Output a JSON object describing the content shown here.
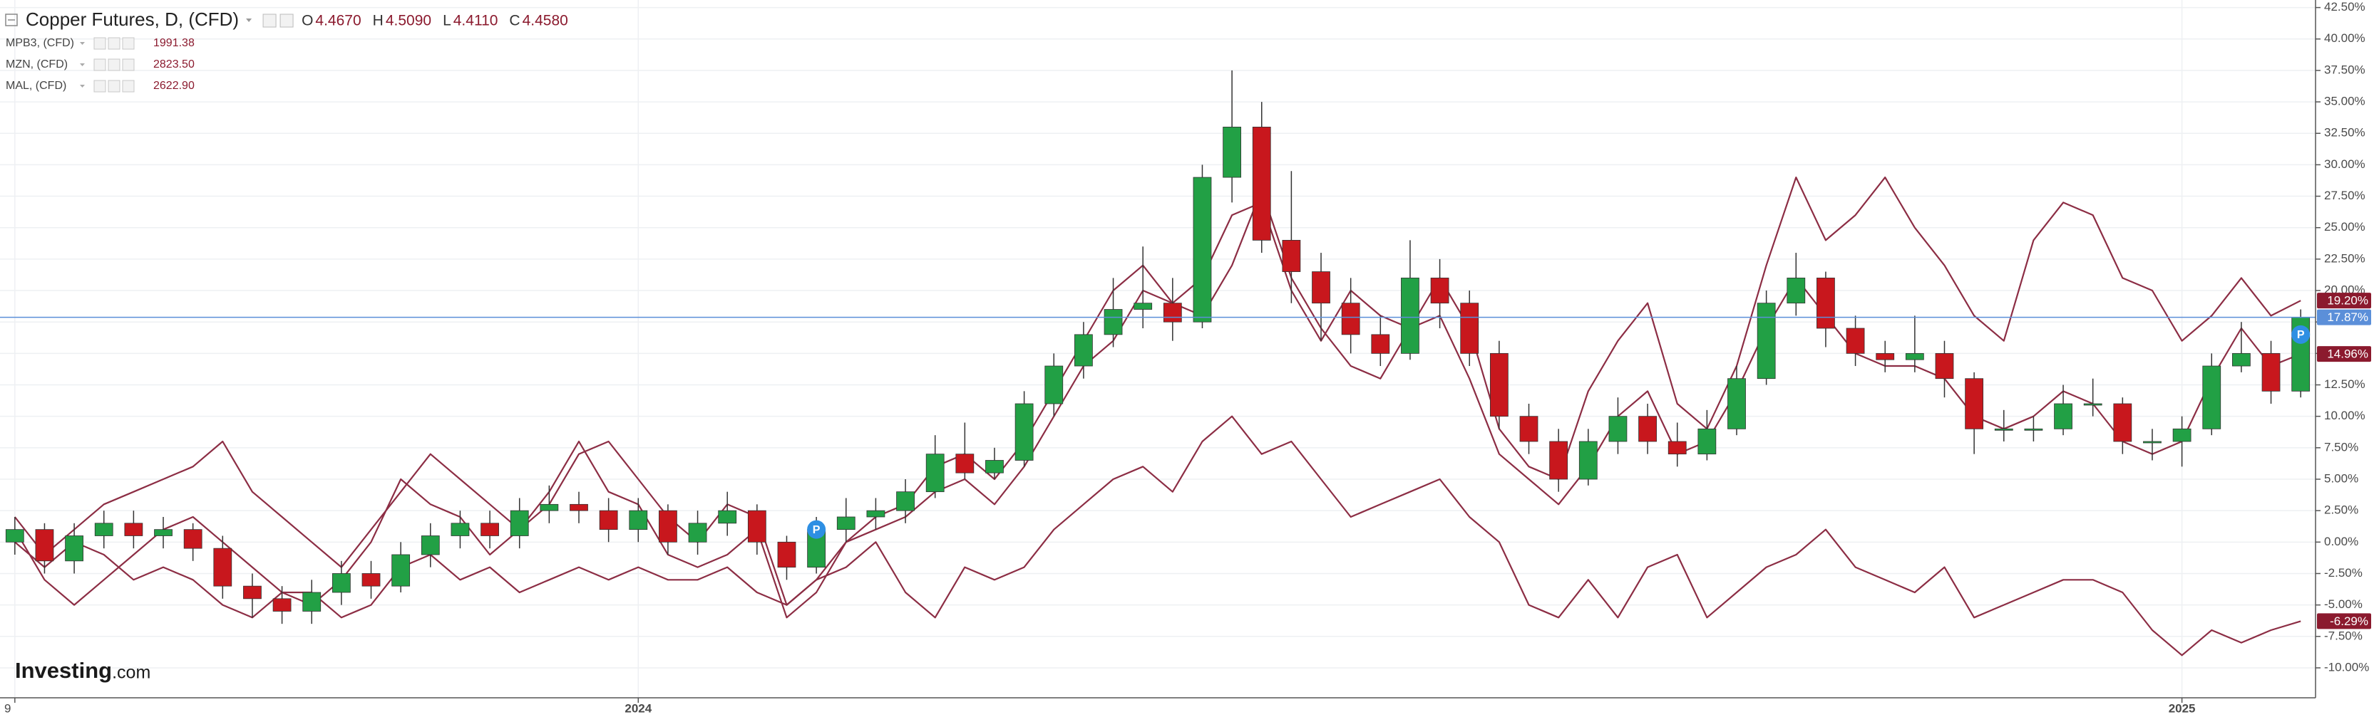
{
  "chart_data": {
    "type": "candlestick",
    "title": "Copper Futures, D, (CFD)",
    "ohlc_header": [
      {
        "key": "O",
        "value": "4.4670"
      },
      {
        "key": "H",
        "value": "4.5090"
      },
      {
        "key": "L",
        "value": "4.4110"
      },
      {
        "key": "C",
        "value": "4.4580"
      }
    ],
    "watermark": {
      "brand": "Investing",
      "suffix": ".com"
    },
    "categories": [
      "9",
      null,
      null,
      null,
      null,
      null,
      null,
      null,
      null,
      null,
      null,
      null,
      null,
      null,
      null,
      null,
      null,
      null,
      null,
      null,
      null,
      "2024",
      null,
      null,
      null,
      null,
      null,
      null,
      null,
      null,
      null,
      null,
      null,
      null,
      null,
      null,
      null,
      null,
      null,
      null,
      null,
      null,
      null,
      null,
      null,
      null,
      null,
      null,
      null,
      null,
      null,
      null,
      null,
      null,
      null,
      null,
      null,
      null,
      null,
      null,
      null,
      null,
      null,
      null,
      null,
      null,
      null,
      null,
      null,
      null,
      null,
      null,
      null,
      "2025",
      null,
      null,
      null,
      null
    ],
    "open": [
      0,
      1.0,
      -1.5,
      0.5,
      1.5,
      0.5,
      1.0,
      -0.5,
      -3.5,
      -4.5,
      -5.5,
      -4.0,
      -2.5,
      -3.5,
      -1.0,
      0.5,
      1.5,
      0.5,
      2.5,
      3.0,
      2.5,
      1.0,
      2.5,
      0.0,
      1.5,
      2.5,
      0.0,
      -2.0,
      1.0,
      2.0,
      2.5,
      4.0,
      7.0,
      5.5,
      6.5,
      11.0,
      14.0,
      16.5,
      18.5,
      19.0,
      17.5,
      29.0,
      33.0,
      24.0,
      21.5,
      19.0,
      16.5,
      15.0,
      21.0,
      19.0,
      15.0,
      10.0,
      8.0,
      5.0,
      8.0,
      10.0,
      8.0,
      7.0,
      9.0,
      13.0,
      19.0,
      21.0,
      17.0,
      15.0,
      14.5,
      15.0,
      13.0,
      9.0,
      9.0,
      9.0,
      11.0,
      11.0,
      8.0,
      8.0,
      9.0,
      14.0,
      15.0,
      12.0
    ],
    "high": [
      2.0,
      1.5,
      1.5,
      2.5,
      2.5,
      2.0,
      1.5,
      0.5,
      -2.5,
      -3.5,
      -3.0,
      -1.5,
      -1.5,
      0.0,
      1.5,
      2.5,
      2.5,
      3.5,
      4.5,
      4.0,
      3.5,
      3.5,
      3.0,
      2.5,
      4.0,
      3.0,
      0.5,
      2.0,
      3.5,
      3.5,
      5.0,
      8.5,
      9.5,
      7.5,
      12.0,
      15.0,
      17.5,
      21.0,
      23.5,
      21.0,
      30.0,
      37.5,
      35.0,
      29.5,
      23.0,
      21.0,
      18.0,
      24.0,
      22.5,
      20.0,
      16.0,
      11.0,
      9.0,
      9.0,
      11.5,
      11.0,
      9.5,
      10.5,
      14.0,
      20.0,
      23.0,
      21.5,
      18.0,
      16.0,
      18.0,
      16.0,
      13.5,
      10.5,
      10.0,
      12.5,
      13.0,
      11.5,
      9.0,
      10.0,
      15.0,
      17.5,
      16.0,
      18.5
    ],
    "low": [
      -1.0,
      -2.5,
      -2.5,
      -0.5,
      -0.5,
      -0.5,
      -1.5,
      -4.5,
      -6.0,
      -6.5,
      -6.5,
      -5.0,
      -4.5,
      -4.0,
      -2.0,
      -0.5,
      -0.5,
      -0.5,
      1.5,
      1.5,
      0.0,
      0.0,
      -1.0,
      -1.0,
      0.5,
      -1.0,
      -3.0,
      -2.5,
      0.0,
      1.0,
      1.5,
      3.5,
      5.0,
      5.0,
      6.0,
      10.0,
      13.0,
      15.5,
      17.0,
      16.0,
      17.0,
      27.0,
      23.0,
      19.0,
      16.0,
      15.0,
      14.0,
      14.5,
      17.0,
      14.0,
      9.0,
      7.0,
      4.0,
      4.5,
      7.0,
      7.0,
      6.0,
      6.5,
      8.5,
      12.5,
      18.0,
      15.5,
      14.0,
      13.5,
      13.5,
      11.5,
      7.0,
      8.0,
      8.0,
      8.5,
      10.0,
      7.0,
      6.5,
      6.0,
      8.5,
      13.5,
      11.0,
      11.5
    ],
    "close": [
      1.0,
      -1.5,
      0.5,
      1.5,
      0.5,
      1.0,
      -0.5,
      -3.5,
      -4.5,
      -5.5,
      -4.0,
      -2.5,
      -3.5,
      -1.0,
      0.5,
      1.5,
      0.5,
      2.5,
      3.0,
      2.5,
      1.0,
      2.5,
      0.0,
      1.5,
      2.5,
      0.0,
      -2.0,
      1.0,
      2.0,
      2.5,
      4.0,
      7.0,
      5.5,
      6.5,
      11.0,
      14.0,
      16.5,
      18.5,
      19.0,
      17.5,
      29.0,
      33.0,
      24.0,
      21.5,
      19.0,
      16.5,
      15.0,
      21.0,
      19.0,
      15.0,
      10.0,
      8.0,
      5.0,
      8.0,
      10.0,
      8.0,
      7.0,
      9.0,
      13.0,
      19.0,
      21.0,
      17.0,
      15.0,
      14.5,
      15.0,
      13.0,
      9.0,
      9.0,
      9.0,
      11.0,
      11.0,
      8.0,
      8.0,
      9.0,
      14.0,
      15.0,
      12.0,
      17.87
    ],
    "last_label": "17.87%",
    "up_color": "#22a045",
    "down_color": "#c8171d",
    "price_line_color": "#5b8fd9",
    "series": [
      {
        "name": "MPB3, (CFD)",
        "price": "1991.38",
        "color": "#8c2d44",
        "last_label": "14.96%",
        "values": [
          1,
          -3,
          -5,
          -3,
          -1,
          1,
          2,
          0,
          -2,
          -4,
          -5,
          -3,
          0,
          5,
          3,
          2,
          -1,
          1,
          4,
          8,
          4,
          3,
          -1,
          -2,
          -1,
          1,
          -6,
          -4,
          0,
          1,
          2,
          4,
          5,
          3,
          6,
          10,
          14,
          16,
          20,
          19,
          18,
          22,
          28,
          21,
          17,
          14,
          13,
          17,
          18,
          13,
          7,
          5,
          3,
          6,
          10,
          12,
          7,
          8,
          12,
          17,
          21,
          18,
          15,
          14,
          14,
          13,
          10,
          9,
          10,
          12,
          11,
          8,
          7,
          8,
          13,
          17,
          14,
          14.96
        ]
      },
      {
        "name": "MZN, (CFD)",
        "price": "2823.50",
        "color": "#8c2d44",
        "last_label": "19.20%",
        "values": [
          2,
          -1,
          1,
          3,
          4,
          5,
          6,
          8,
          4,
          2,
          0,
          -2,
          1,
          4,
          7,
          5,
          3,
          1,
          3,
          7,
          8,
          5,
          2,
          0,
          3,
          2,
          -5,
          -3,
          0,
          2,
          3,
          6,
          7,
          5,
          8,
          12,
          16,
          20,
          22,
          19,
          21,
          26,
          27,
          20,
          16,
          20,
          18,
          17,
          21,
          17,
          9,
          6,
          5,
          12,
          16,
          19,
          11,
          9,
          14,
          22,
          29,
          24,
          26,
          29,
          25,
          22,
          18,
          16,
          24,
          27,
          26,
          21,
          20,
          16,
          18,
          21,
          18,
          19.2
        ]
      },
      {
        "name": "MAL, (CFD)",
        "price": "2622.90",
        "color": "#8c2d44",
        "last_label": "-6.29%",
        "values": [
          0,
          -2,
          0,
          -1,
          -3,
          -2,
          -3,
          -5,
          -6,
          -4,
          -4,
          -6,
          -5,
          -2,
          -1,
          -3,
          -2,
          -4,
          -3,
          -2,
          -3,
          -2,
          -3,
          -3,
          -2,
          -4,
          -5,
          -3,
          -2,
          0,
          -4,
          -6,
          -2,
          -3,
          -2,
          1,
          3,
          5,
          6,
          4,
          8,
          10,
          7,
          8,
          5,
          2,
          3,
          4,
          5,
          2,
          0,
          -5,
          -6,
          -3,
          -6,
          -2,
          -1,
          -6,
          -4,
          -2,
          -1,
          1,
          -2,
          -3,
          -4,
          -2,
          -6,
          -5,
          -4,
          -3,
          -3,
          -4,
          -7,
          -9,
          -7,
          -8,
          -7,
          -6.29
        ]
      }
    ],
    "event_markers": [
      {
        "text": "P",
        "at": 27,
        "value": 1.0
      },
      {
        "text": "P",
        "at": 77,
        "value": 16.5
      }
    ],
    "ylim": [
      -12.38,
      43.1
    ],
    "yticks": [
      {
        "value": 42.5,
        "label": "42.50%"
      },
      {
        "value": 40,
        "label": "40.00%"
      },
      {
        "value": 37.5,
        "label": "37.50%"
      },
      {
        "value": 35,
        "label": "35.00%"
      },
      {
        "value": 32.5,
        "label": "32.50%"
      },
      {
        "value": 30,
        "label": "30.00%"
      },
      {
        "value": 27.5,
        "label": "27.50%"
      },
      {
        "value": 25,
        "label": "25.00%"
      },
      {
        "value": 22.5,
        "label": "22.50%"
      },
      {
        "value": 20,
        "label": "20.00%"
      },
      {
        "value": 17.5,
        "label": "17.50%"
      },
      {
        "value": 15,
        "label": "15.00%"
      },
      {
        "value": 12.5,
        "label": "12.50%"
      },
      {
        "value": 10,
        "label": "10.00%"
      },
      {
        "value": 7.5,
        "label": "7.50%"
      },
      {
        "value": 5,
        "label": "5.00%"
      },
      {
        "value": 2.5,
        "label": "2.50%"
      },
      {
        "value": 0,
        "label": "0.00%"
      },
      {
        "value": -2.5,
        "label": "-2.50%"
      },
      {
        "value": -5,
        "label": "-5.00%"
      },
      {
        "value": -7.5,
        "label": "-7.50%"
      },
      {
        "value": -10,
        "label": "-10.00%"
      }
    ],
    "grid": true
  }
}
